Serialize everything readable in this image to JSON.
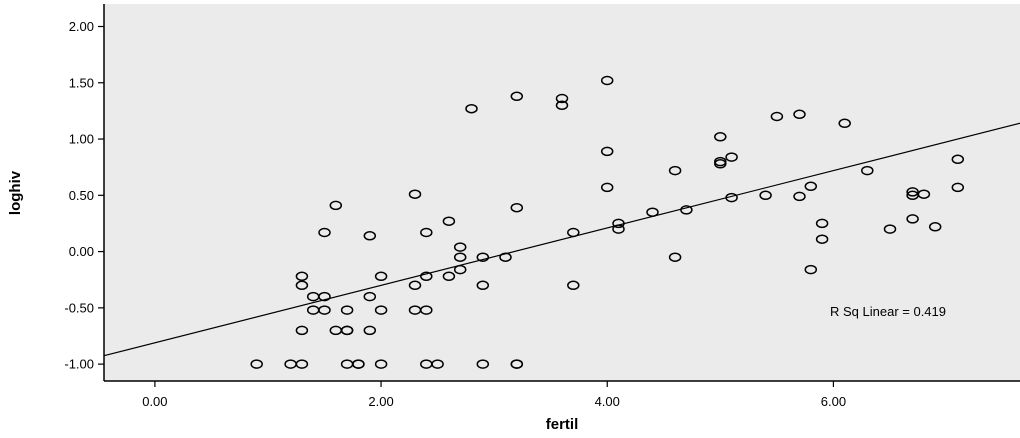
{
  "chart_data": {
    "type": "scatter",
    "xlabel": "fertil",
    "ylabel": "loghiv",
    "xlim": [
      -0.45,
      7.65
    ],
    "ylim": [
      -1.15,
      2.2
    ],
    "xticks": [
      0,
      2,
      4,
      6
    ],
    "xtick_labels": [
      "0.00",
      "2.00",
      "4.00",
      "6.00"
    ],
    "yticks": [
      -1,
      -0.5,
      0,
      0.5,
      1,
      1.5,
      2
    ],
    "ytick_labels": [
      "-1.00",
      "-0.50",
      "0.00",
      "0.50",
      "1.00",
      "1.50",
      "2.00"
    ],
    "grid": false,
    "plot_background": "#ebebeb",
    "marker_color": "#000000",
    "fit_line": {
      "intercept": -0.81,
      "slope": 0.255
    },
    "annotation": "R Sq Linear = 0.419",
    "points": [
      [
        0.9,
        -1.0
      ],
      [
        1.2,
        -1.0
      ],
      [
        1.3,
        -1.0
      ],
      [
        1.7,
        -1.0
      ],
      [
        1.8,
        -1.0
      ],
      [
        1.8,
        -1.0
      ],
      [
        2.0,
        -1.0
      ],
      [
        2.4,
        -1.0
      ],
      [
        2.5,
        -1.0
      ],
      [
        2.9,
        -1.0
      ],
      [
        3.2,
        -1.0
      ],
      [
        3.2,
        -1.0
      ],
      [
        1.3,
        -0.7
      ],
      [
        1.6,
        -0.7
      ],
      [
        1.7,
        -0.7
      ],
      [
        1.7,
        -0.7
      ],
      [
        1.9,
        -0.7
      ],
      [
        1.4,
        -0.52
      ],
      [
        1.5,
        -0.52
      ],
      [
        1.7,
        -0.52
      ],
      [
        2.0,
        -0.52
      ],
      [
        2.3,
        -0.52
      ],
      [
        2.4,
        -0.52
      ],
      [
        1.5,
        -0.4
      ],
      [
        1.9,
        -0.4
      ],
      [
        1.4,
        -0.4
      ],
      [
        1.3,
        -0.3
      ],
      [
        2.3,
        -0.3
      ],
      [
        2.9,
        -0.3
      ],
      [
        3.7,
        -0.3
      ],
      [
        1.3,
        -0.22
      ],
      [
        2.0,
        -0.22
      ],
      [
        2.4,
        -0.22
      ],
      [
        2.6,
        -0.22
      ],
      [
        2.7,
        -0.16
      ],
      [
        5.8,
        -0.16
      ],
      [
        2.7,
        -0.05
      ],
      [
        2.9,
        -0.05
      ],
      [
        3.1,
        -0.05
      ],
      [
        4.6,
        -0.05
      ],
      [
        2.7,
        0.04
      ],
      [
        1.9,
        0.14
      ],
      [
        1.5,
        0.17
      ],
      [
        2.4,
        0.17
      ],
      [
        3.7,
        0.17
      ],
      [
        4.1,
        0.2
      ],
      [
        6.5,
        0.2
      ],
      [
        6.9,
        0.22
      ],
      [
        4.1,
        0.25
      ],
      [
        5.9,
        0.25
      ],
      [
        2.6,
        0.27
      ],
      [
        6.7,
        0.29
      ],
      [
        4.4,
        0.35
      ],
      [
        4.7,
        0.37
      ],
      [
        3.2,
        0.39
      ],
      [
        1.6,
        0.41
      ],
      [
        5.9,
        0.11
      ],
      [
        5.1,
        0.48
      ],
      [
        5.4,
        0.5
      ],
      [
        5.7,
        0.49
      ],
      [
        2.3,
        0.51
      ],
      [
        6.7,
        0.5
      ],
      [
        6.8,
        0.51
      ],
      [
        6.7,
        0.53
      ],
      [
        4.0,
        0.57
      ],
      [
        5.8,
        0.58
      ],
      [
        7.1,
        0.57
      ],
      [
        4.6,
        0.72
      ],
      [
        6.3,
        0.72
      ],
      [
        5.0,
        0.78
      ],
      [
        5.0,
        0.8
      ],
      [
        7.1,
        0.82
      ],
      [
        5.1,
        0.84
      ],
      [
        4.0,
        0.89
      ],
      [
        5.0,
        1.02
      ],
      [
        6.1,
        1.14
      ],
      [
        5.5,
        1.2
      ],
      [
        5.7,
        1.22
      ],
      [
        2.8,
        1.27
      ],
      [
        3.6,
        1.3
      ],
      [
        3.6,
        1.36
      ],
      [
        3.2,
        1.38
      ],
      [
        4.0,
        1.52
      ]
    ]
  }
}
